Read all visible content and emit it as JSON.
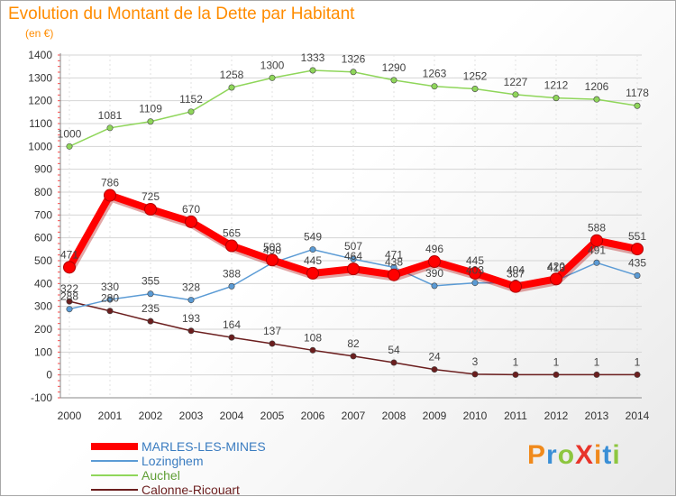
{
  "title": "Evolution du Montant de la Dette par Habitant",
  "subtitle": "(en €)",
  "brand": {
    "text": "ProXiti",
    "letter_colors": [
      "#f08a1c",
      "#3a8fd6",
      "#8dc63f",
      "#e8342a",
      "#f08a1c",
      "#3a8fd6",
      "#8dc63f"
    ]
  },
  "chart_data": {
    "type": "line",
    "x": [
      "2000",
      "2001",
      "2002",
      "2003",
      "2004",
      "2005",
      "2006",
      "2007",
      "2008",
      "2009",
      "2010",
      "2011",
      "2012",
      "2013",
      "2014"
    ],
    "ylim": [
      -100,
      1400
    ],
    "yticks": [
      -100,
      0,
      100,
      200,
      300,
      400,
      500,
      600,
      700,
      800,
      900,
      1000,
      1100,
      1200,
      1300,
      1400
    ],
    "grid": true,
    "legend_position": "bottom-left",
    "series": [
      {
        "name": "MARLES-LES-MINES",
        "color": "#ff0000",
        "values": [
          471,
          786,
          725,
          670,
          565,
          503,
          445,
          464,
          438,
          496,
          445,
          387,
          420,
          588,
          551
        ]
      },
      {
        "name": "Lozinghem",
        "color": "#5b9bd5",
        "values": [
          288,
          330,
          355,
          328,
          388,
          490,
          549,
          507,
          471,
          390,
          403,
          404,
          413,
          491,
          435
        ]
      },
      {
        "name": "Auchel",
        "color": "#8fd65a",
        "values": [
          1000,
          1081,
          1109,
          1152,
          1258,
          1300,
          1333,
          1326,
          1290,
          1263,
          1252,
          1227,
          1212,
          1206,
          1178
        ]
      },
      {
        "name": "Calonne-Ricouart",
        "color": "#6b1e1e",
        "values": [
          322,
          280,
          235,
          193,
          164,
          137,
          108,
          82,
          54,
          24,
          3,
          1,
          1,
          1,
          1
        ]
      }
    ]
  }
}
